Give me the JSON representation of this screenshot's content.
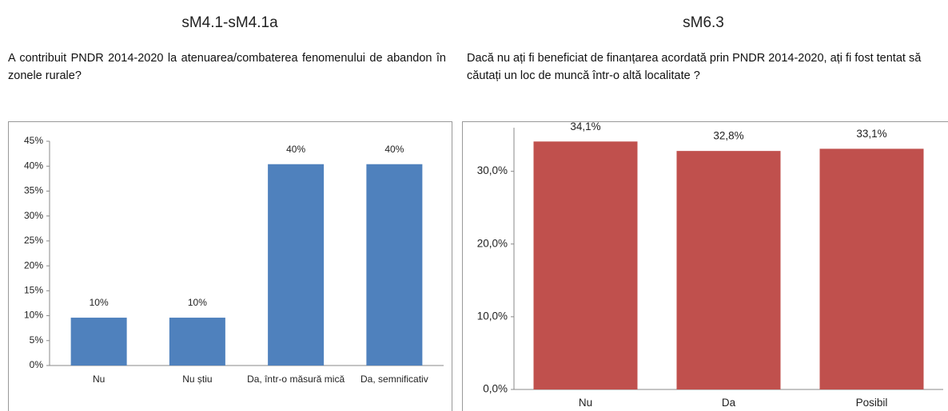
{
  "chart_data": [
    {
      "type": "bar",
      "title": "sM4.1-sM4.1a",
      "subtitle": "A contribuit PNDR 2014-2020 la atenuarea/combaterea fenomenului de abandon în zonele rurale?",
      "categories": [
        "Nu",
        "Nu știu",
        "Da, într-o măsură mică",
        "Da, semnificativ"
      ],
      "values": [
        9.6,
        9.6,
        40.4,
        40.4
      ],
      "value_labels": [
        "10%",
        "10%",
        "40%",
        "40%"
      ],
      "color": "#4f81bd",
      "ylim": [
        0,
        45
      ],
      "yticks": [
        {
          "value": 0,
          "label": "0%"
        },
        {
          "value": 5,
          "label": "5%"
        },
        {
          "value": 10,
          "label": "10%"
        },
        {
          "value": 15,
          "label": "15%"
        },
        {
          "value": 20,
          "label": "20%"
        },
        {
          "value": 25,
          "label": "25%"
        },
        {
          "value": 30,
          "label": "30%"
        },
        {
          "value": 35,
          "label": "35%"
        },
        {
          "value": 40,
          "label": "40%"
        },
        {
          "value": 45,
          "label": "45%"
        }
      ],
      "grid": false
    },
    {
      "type": "bar",
      "title": "sM6.3",
      "subtitle": "Dacă nu ați fi beneficiat de finanțarea acordată prin PNDR 2014-2020, ați fi fost tentat să căutați un loc de muncă într-o altă localitate ?",
      "categories": [
        "Nu",
        "Da",
        "Posibil"
      ],
      "values": [
        34.1,
        32.8,
        33.1
      ],
      "value_labels": [
        "34,1%",
        "32,8%",
        "33,1%"
      ],
      "color": "#c0504d",
      "ylim": [
        0,
        36
      ],
      "yticks": [
        {
          "value": 0,
          "label": "0,0%"
        },
        {
          "value": 10,
          "label": "10,0%"
        },
        {
          "value": 20,
          "label": "20,0%"
        },
        {
          "value": 30,
          "label": "30,0%"
        }
      ],
      "grid": false
    }
  ]
}
